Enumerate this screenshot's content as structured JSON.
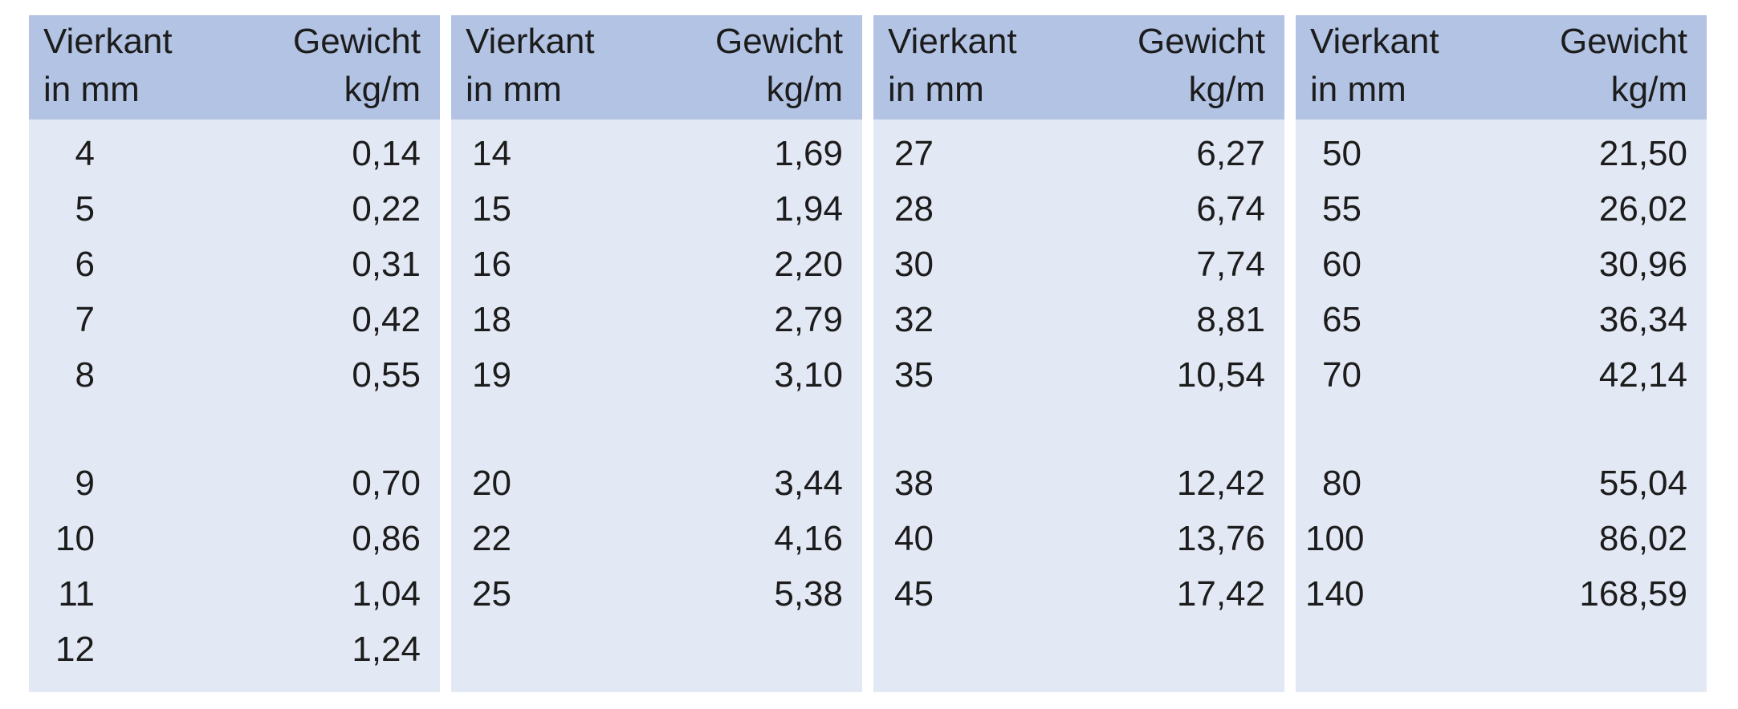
{
  "panels": [
    {
      "header": {
        "size": [
          "Vierkant",
          "in mm"
        ],
        "weight": [
          "Gewicht",
          "kg/m"
        ]
      },
      "groups": [
        [
          [
            "4",
            "0,14"
          ],
          [
            "5",
            "0,22"
          ],
          [
            "6",
            "0,31"
          ],
          [
            "7",
            "0,42"
          ],
          [
            "8",
            "0,55"
          ]
        ],
        [
          [
            "9",
            "0,70"
          ],
          [
            "10",
            "0,86"
          ],
          [
            "11",
            "1,04"
          ],
          [
            "12",
            "1,24"
          ]
        ]
      ]
    },
    {
      "header": {
        "size": [
          "Vierkant",
          "in mm"
        ],
        "weight": [
          "Gewicht",
          "kg/m"
        ]
      },
      "groups": [
        [
          [
            "14",
            "1,69"
          ],
          [
            "15",
            "1,94"
          ],
          [
            "16",
            "2,20"
          ],
          [
            "18",
            "2,79"
          ],
          [
            "19",
            "3,10"
          ]
        ],
        [
          [
            "20",
            "3,44"
          ],
          [
            "22",
            "4,16"
          ],
          [
            "25",
            "5,38"
          ]
        ]
      ]
    },
    {
      "header": {
        "size": [
          "Vierkant",
          "in mm"
        ],
        "weight": [
          "Gewicht",
          "kg/m"
        ]
      },
      "groups": [
        [
          [
            "27",
            "6,27"
          ],
          [
            "28",
            "6,74"
          ],
          [
            "30",
            "7,74"
          ],
          [
            "32",
            "8,81"
          ],
          [
            "35",
            "10,54"
          ]
        ],
        [
          [
            "38",
            "12,42"
          ],
          [
            "40",
            "13,76"
          ],
          [
            "45",
            "17,42"
          ]
        ]
      ]
    },
    {
      "header": {
        "size": [
          "Vierkant",
          "in mm"
        ],
        "weight": [
          "Gewicht",
          "kg/m"
        ]
      },
      "groups": [
        [
          [
            "50",
            "21,50"
          ],
          [
            "55",
            "26,02"
          ],
          [
            "60",
            "30,96"
          ],
          [
            "65",
            "36,34"
          ],
          [
            "70",
            "42,14"
          ]
        ],
        [
          [
            "80",
            "55,04"
          ],
          [
            "100",
            "86,02"
          ],
          [
            "140",
            "168,59"
          ]
        ]
      ]
    }
  ]
}
